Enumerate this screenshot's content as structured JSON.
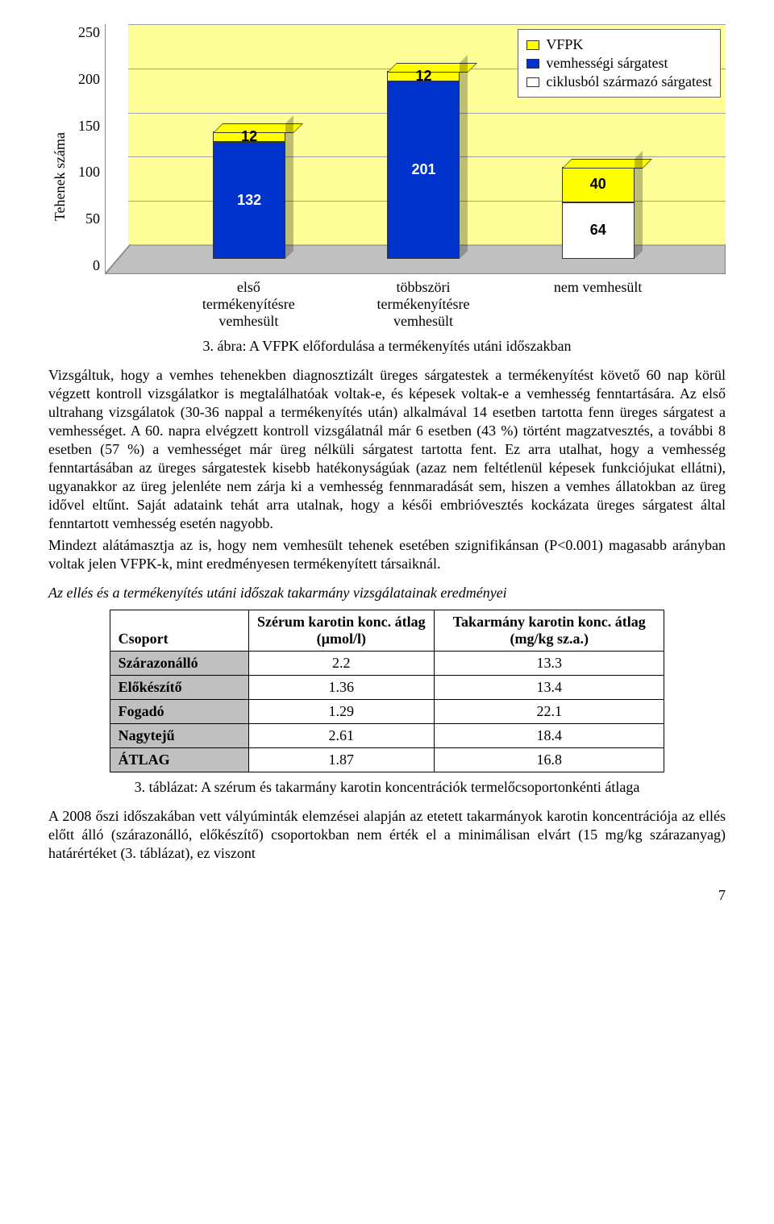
{
  "chart": {
    "y_axis_label": "Tehenek száma",
    "y_max": 250,
    "y_ticks": [
      "250",
      "200",
      "150",
      "100",
      "50",
      "0"
    ],
    "plot_bg": "#ffff99",
    "floor_color": "#c0c0c0",
    "grid_color": "#a0a0a0",
    "legend": [
      {
        "label": "VFPK",
        "color": "#ffff00"
      },
      {
        "label": "vemhességi sárgatest",
        "color": "#0033cc"
      },
      {
        "label": "ciklusból származó sárgatest",
        "color": "#ffffff"
      }
    ],
    "categories": [
      "első termékenyítésre vemhesült",
      "többszöri termékenyítésre vemhesült",
      "nem vemhesült"
    ],
    "series_colors": {
      "vfpk": "#ffff00",
      "vemh": "#0033cc",
      "ciklus": "#ffffff"
    },
    "stacks": [
      [
        {
          "key": "vemh",
          "value": 132,
          "label": "132",
          "textcolor": "#ffffff"
        },
        {
          "key": "vfpk",
          "value": 12,
          "label": "12",
          "textcolor": "#000000"
        }
      ],
      [
        {
          "key": "vemh",
          "value": 201,
          "label": "201",
          "textcolor": "#ffffff"
        },
        {
          "key": "vfpk",
          "value": 12,
          "label": "12",
          "textcolor": "#000000"
        }
      ],
      [
        {
          "key": "ciklus",
          "value": 64,
          "label": "64",
          "textcolor": "#000000"
        },
        {
          "key": "vfpk",
          "value": 40,
          "label": "40",
          "textcolor": "#000000"
        }
      ]
    ],
    "caption": "3. ábra: A VFPK előfordulása a termékenyítés utáni időszakban"
  },
  "paragraphs": {
    "p1": "Vizsgáltuk, hogy a vemhes tehenekben diagnosztizált üreges sárgatestek a termékenyítést követő 60 nap körül végzett kontroll vizsgálatkor is megtalálhatóak voltak-e, és képesek voltak-e a vemhesség fenntartására. Az első ultrahang vizsgálatok (30-36 nappal a termékenyítés után) alkalmával 14 esetben tartotta fenn üreges sárgatest a vemhességet. A 60. napra elvégzett kontroll vizsgálatnál már 6 esetben (43 %) történt magzatvesztés, a további 8 esetben (57 %) a vemhességet már üreg nélküli sárgatest tartotta fent. Ez arra utalhat, hogy a vemhesség fenntartásában az üreges sárgatestek kisebb hatékonyságúak (azaz nem feltétlenül képesek funkciójukat ellátni), ugyanakkor az üreg jelenléte nem zárja ki a vemhesség fennmaradását sem, hiszen a vemhes állatokban az üreg idővel eltűnt. Saját adataink tehát arra utalnak, hogy a késői embrióvesztés kockázata üreges sárgatest által fenntartott vemhesség esetén nagyobb.",
    "p2": "Mindezt alátámasztja az is, hogy nem vemhesült tehenek esetében szignifikánsan (P<0.001) magasabb arányban voltak jelen VFPK-k, mint eredményesen termékenyített társaiknál.",
    "p3": "A 2008 őszi időszakában vett vályúminták elemzései alapján az etetett takarmányok karotin koncentrációja az ellés előtt álló (szárazonálló, előkészítő) csoportokban nem érték el a minimálisan elvárt (15 mg/kg szárazanyag) határértéket (3. táblázat), ez viszont"
  },
  "section_title": "Az ellés és a termékenyítés utáni időszak takarmány vizsgálatainak eredményei",
  "table": {
    "columns": [
      "Csoport",
      "Szérum karotin konc. átlag (µmol/l)",
      "Takarmány karotin konc. átlag (mg/kg sz.a.)"
    ],
    "rows": [
      [
        "Szárazonálló",
        "2.2",
        "13.3"
      ],
      [
        "Előkészítő",
        "1.36",
        "13.4"
      ],
      [
        "Fogadó",
        "1.29",
        "22.1"
      ],
      [
        "Nagytejű",
        "2.61",
        "18.4"
      ],
      [
        "ÁTLAG",
        "1.87",
        "16.8"
      ]
    ],
    "caption": "3. táblázat: A szérum és takarmány karotin koncentrációk termelőcsoportonkénti átlaga"
  },
  "page_number": "7"
}
